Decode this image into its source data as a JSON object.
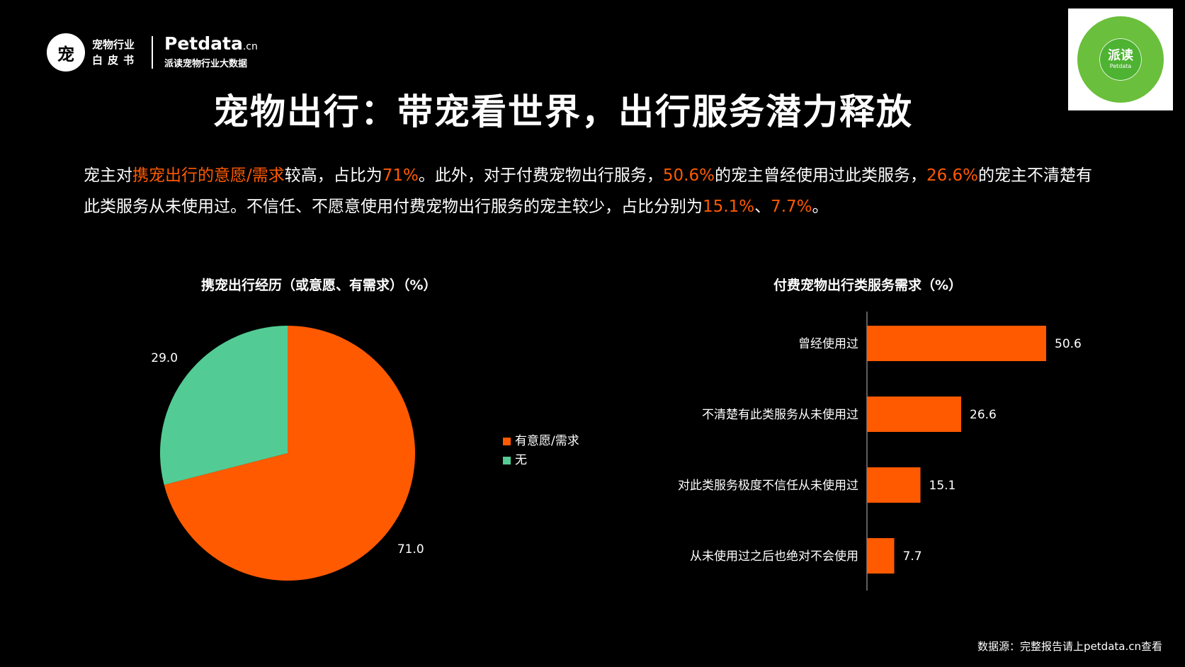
{
  "header": {
    "logo_mark": "宠",
    "logo_cn_line1": "宠物行业",
    "logo_cn_line2": "白皮书",
    "brand": "Petdata",
    "brand_suffix": ".cn",
    "brand_sub": "派读宠物行业大数据"
  },
  "qr": {
    "label": "派读",
    "sub": "Petdata"
  },
  "title": "宠物出行：带宠看世界，出行服务潜力释放",
  "desc": {
    "t1": "宠主对",
    "h1": "携宠出行的意愿/需求",
    "t2": "较高，占比为",
    "h2": "71%",
    "t3": "。此外，对于付费宠物出行服务，",
    "h3": "50.6%",
    "t4": "的宠主曾经使用过此类服务，",
    "h4": "26.6%",
    "t5": "的宠主不清楚有此类服务从未使用过。不信任、不愿意使用付费宠物出行服务的宠主较少，占比分别为",
    "h5": "15.1%",
    "t6": "、",
    "h6": "7.7%",
    "t7": "。"
  },
  "colors": {
    "accent": "#ff5a00",
    "green": "#52cc94",
    "background": "#000000",
    "text": "#ffffff"
  },
  "chart_data": [
    {
      "type": "pie",
      "title": "携宠出行经历（或意愿、有需求）（%）",
      "categories": [
        "有意愿/需求",
        "无"
      ],
      "values": [
        71.0,
        29.0
      ],
      "value_labels": [
        "71.0",
        "29.0"
      ],
      "colors": [
        "#ff5a00",
        "#52cc94"
      ],
      "legend": "right"
    },
    {
      "type": "bar",
      "orientation": "horizontal",
      "title": "付费宠物出行类服务需求（%）",
      "categories": [
        "曾经使用过",
        "不清楚有此类服务从未使用过",
        "对此类服务极度不信任从未使用过",
        "从未使用过之后也绝对不会使用"
      ],
      "values": [
        50.6,
        26.6,
        15.1,
        7.7
      ],
      "value_labels": [
        "50.6",
        "26.6",
        "15.1",
        "7.7"
      ],
      "color": "#ff5a00",
      "xlim": [
        0,
        60
      ]
    }
  ],
  "source": "数据源：完整报告请上petdata.cn查看"
}
